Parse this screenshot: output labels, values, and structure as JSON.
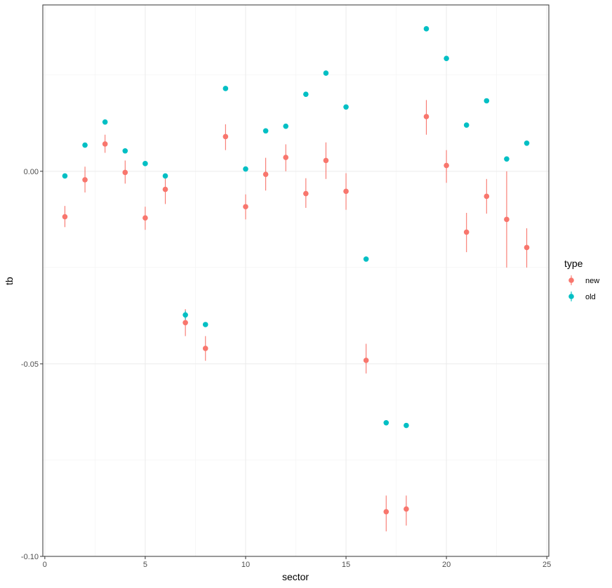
{
  "chart_data": {
    "type": "scatter",
    "xlabel": "sector",
    "ylabel": "tb",
    "xlim": [
      -0.1,
      25.1
    ],
    "ylim": [
      -0.1,
      0.0432
    ],
    "x_ticks": [
      0,
      5,
      10,
      15,
      20,
      25
    ],
    "x_tick_labels": [
      "0",
      "5",
      "10",
      "15",
      "20",
      "25"
    ],
    "y_ticks": [
      0.0,
      -0.05,
      -0.1
    ],
    "y_tick_labels": [
      "0.00",
      "-0.05",
      "-0.10"
    ],
    "grid": true,
    "legend": {
      "title": "type",
      "position": "right"
    },
    "colors": {
      "new": "#F8766D",
      "old": "#00BFC4"
    },
    "series": [
      {
        "name": "new",
        "color": "#F8766D",
        "x": [
          1,
          2,
          3,
          4,
          5,
          6,
          7,
          8,
          9,
          10,
          11,
          12,
          13,
          14,
          15,
          16,
          17,
          18,
          19,
          20,
          21,
          22,
          23,
          24
        ],
        "y": [
          -0.0118,
          -0.0022,
          0.0071,
          -0.0003,
          -0.0121,
          -0.0047,
          -0.0393,
          -0.046,
          0.009,
          -0.0092,
          -0.0008,
          0.0036,
          -0.0058,
          0.0028,
          -0.0052,
          -0.0491,
          -0.0884,
          -0.0877,
          0.0142,
          0.0015,
          -0.0158,
          -0.0065,
          -0.0125,
          -0.0198
        ],
        "ymin": [
          -0.0145,
          -0.0055,
          0.0048,
          -0.0032,
          -0.0152,
          -0.0085,
          -0.0428,
          -0.0492,
          0.0055,
          -0.0125,
          -0.005,
          0.0,
          -0.0095,
          -0.002,
          -0.01,
          -0.0525,
          -0.0935,
          -0.092,
          0.0095,
          -0.003,
          -0.021,
          -0.011,
          -0.025,
          -0.025
        ],
        "ymax": [
          -0.009,
          0.0012,
          0.0095,
          0.0028,
          -0.0092,
          -0.0012,
          -0.0358,
          -0.0428,
          0.0122,
          -0.006,
          0.0035,
          0.007,
          -0.0018,
          0.0075,
          -0.0005,
          -0.0448,
          -0.0842,
          -0.0842,
          0.0185,
          0.0055,
          -0.0108,
          -0.002,
          0.0,
          -0.0148
        ]
      },
      {
        "name": "old",
        "color": "#00BFC4",
        "x": [
          1,
          2,
          3,
          4,
          5,
          6,
          7,
          8,
          9,
          10,
          11,
          12,
          13,
          14,
          15,
          16,
          17,
          18,
          19,
          20,
          21,
          22,
          23,
          24
        ],
        "y": [
          -0.0012,
          0.0068,
          0.0128,
          0.0053,
          0.002,
          -0.0012,
          -0.0373,
          -0.0398,
          0.0215,
          0.0006,
          0.0105,
          0.0117,
          0.02,
          0.0255,
          0.0167,
          -0.0228,
          -0.0653,
          -0.066,
          0.037,
          0.0293,
          0.012,
          0.0183,
          0.0032,
          0.0073
        ],
        "ymin": [
          -0.0012,
          0.0068,
          0.0128,
          0.0053,
          0.002,
          -0.0012,
          -0.0385,
          -0.0398,
          0.0215,
          0.0006,
          0.0105,
          0.0117,
          0.02,
          0.0255,
          0.0167,
          -0.0228,
          -0.0653,
          -0.066,
          0.037,
          0.0293,
          0.012,
          0.0183,
          0.0032,
          0.0073
        ],
        "ymax": [
          -0.0012,
          0.0068,
          0.0128,
          0.0053,
          0.002,
          -0.0012,
          -0.0362,
          -0.0398,
          0.0215,
          0.0006,
          0.0105,
          0.0117,
          0.02,
          0.0255,
          0.0167,
          -0.0228,
          -0.0653,
          -0.066,
          0.037,
          0.0293,
          0.012,
          0.0183,
          0.0032,
          0.0073
        ]
      }
    ]
  }
}
